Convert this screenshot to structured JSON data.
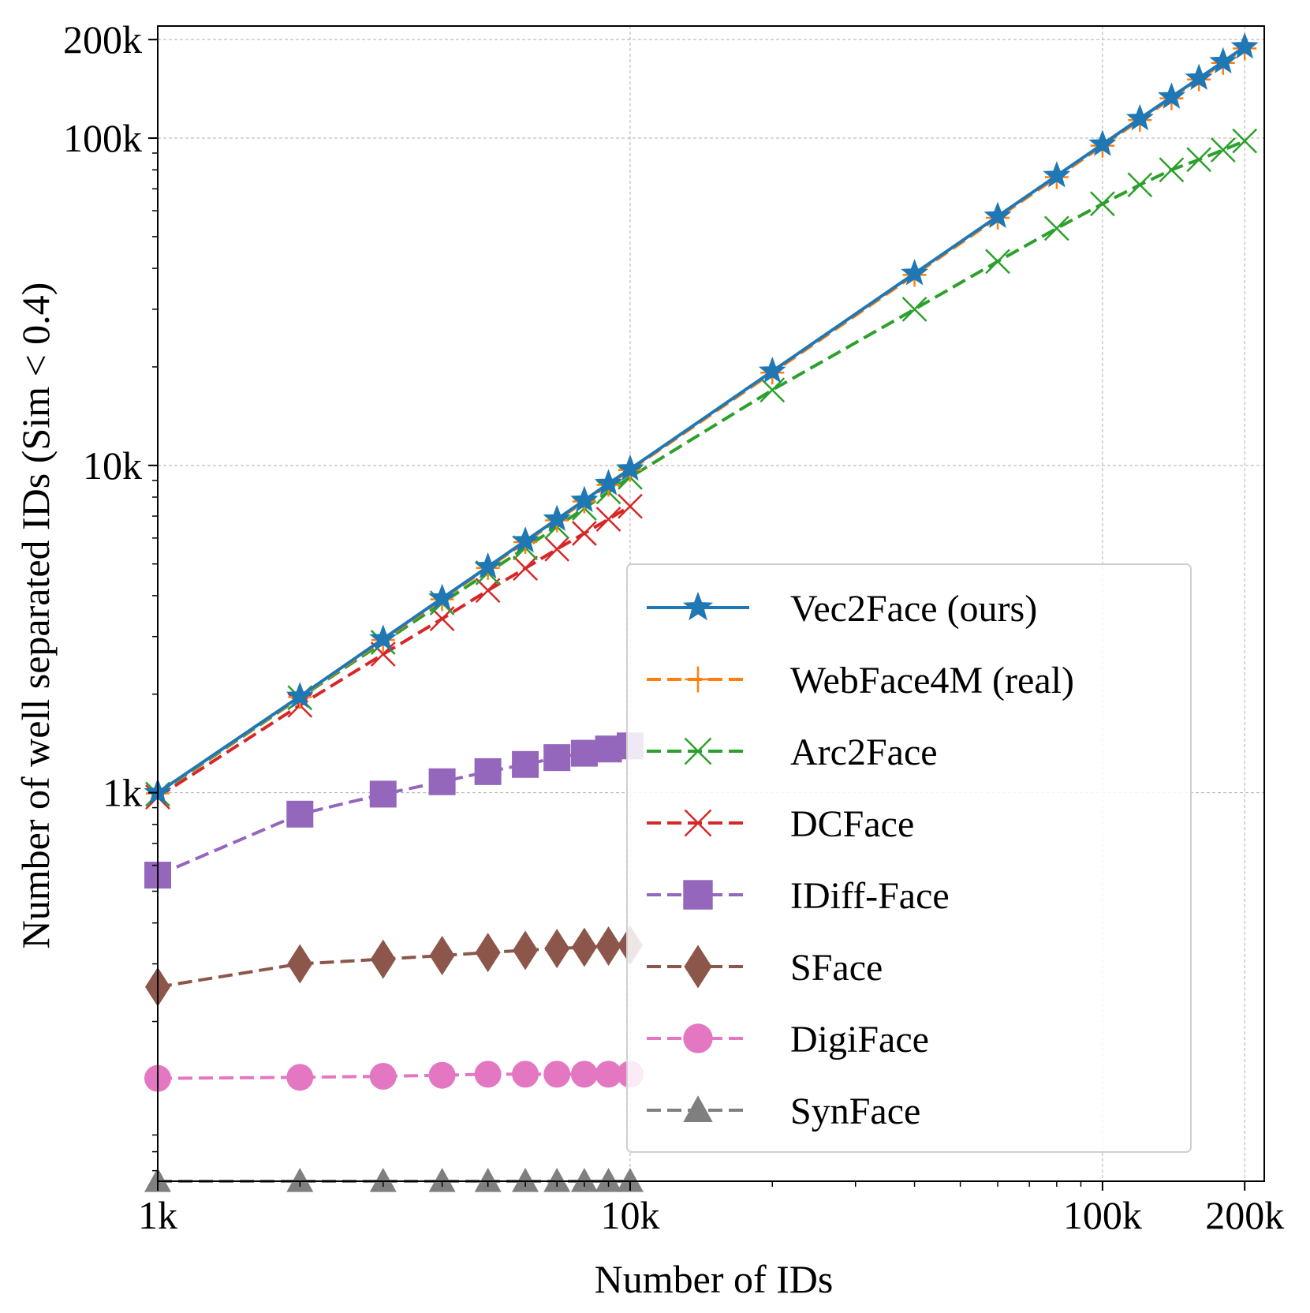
{
  "chart_data": {
    "type": "line",
    "title": "",
    "xlabel": "Number of IDs",
    "ylabel": "Number of well separated IDs (Sim < 0.4)",
    "xscale": "log",
    "yscale": "log",
    "xlim": [
      1000,
      220000
    ],
    "ylim": [
      65,
      220000
    ],
    "grid": true,
    "legend_position": "lower-right",
    "x_ticks": [
      {
        "value": 1000,
        "label": "1k"
      },
      {
        "value": 10000,
        "label": "10k"
      },
      {
        "value": 100000,
        "label": "100k"
      },
      {
        "value": 200000,
        "label": "200k"
      }
    ],
    "y_ticks": [
      {
        "value": 1000,
        "label": "1k"
      },
      {
        "value": 10000,
        "label": "10k"
      },
      {
        "value": 100000,
        "label": "100k"
      },
      {
        "value": 200000,
        "label": "200k"
      }
    ],
    "series": [
      {
        "name": "Vec2Face (ours)",
        "color": "#1f77b4",
        "marker": "star",
        "dash": "solid",
        "x": [
          1000,
          2000,
          3000,
          4000,
          5000,
          6000,
          7000,
          8000,
          9000,
          10000,
          20000,
          40000,
          60000,
          80000,
          100000,
          120000,
          140000,
          160000,
          180000,
          200000
        ],
        "y": [
          1000,
          1970,
          2950,
          3930,
          4900,
          5880,
          6850,
          7820,
          8800,
          9750,
          19400,
          38600,
          57700,
          76800,
          95800,
          114700,
          133600,
          152400,
          171200,
          190000
        ]
      },
      {
        "name": "WebFace4M (real)",
        "color": "#ff7f0e",
        "marker": "plus",
        "dash": "dashed",
        "x": [
          1000,
          2000,
          3000,
          4000,
          5000,
          6000,
          7000,
          8000,
          9000,
          10000,
          20000,
          40000,
          60000,
          80000,
          100000,
          120000,
          140000,
          160000,
          180000,
          200000
        ],
        "y": [
          995,
          1960,
          2930,
          3900,
          4860,
          5830,
          6790,
          7760,
          8720,
          9680,
          19200,
          38200,
          57100,
          76000,
          94800,
          113600,
          132300,
          151000,
          169700,
          188000
        ]
      },
      {
        "name": "Arc2Face",
        "color": "#2ca02c",
        "marker": "x",
        "dash": "dashed",
        "x": [
          1000,
          2000,
          3000,
          4000,
          5000,
          6000,
          7000,
          8000,
          9000,
          10000,
          20000,
          40000,
          60000,
          80000,
          100000,
          120000,
          140000,
          160000,
          180000,
          200000
        ],
        "y": [
          990,
          1950,
          2880,
          3800,
          4700,
          5600,
          6500,
          7400,
          8300,
          9200,
          17000,
          30000,
          42000,
          53000,
          63000,
          72000,
          80000,
          86000,
          92000,
          98000
        ]
      },
      {
        "name": "DCFace",
        "color": "#d62728",
        "marker": "x",
        "dash": "dashed",
        "x": [
          1000,
          2000,
          3000,
          4000,
          5000,
          6000,
          7000,
          8000,
          9000,
          10000
        ],
        "y": [
          970,
          1850,
          2650,
          3400,
          4150,
          4850,
          5550,
          6200,
          6850,
          7500
        ]
      },
      {
        "name": "IDiff-Face",
        "color": "#9467bd",
        "marker": "square",
        "dash": "dashed",
        "x": [
          1000,
          2000,
          3000,
          4000,
          5000,
          6000,
          7000,
          8000,
          9000,
          10000
        ],
        "y": [
          560,
          860,
          990,
          1080,
          1160,
          1220,
          1280,
          1320,
          1360,
          1390
        ]
      },
      {
        "name": "SFace",
        "color": "#8c564b",
        "marker": "diamond",
        "dash": "dashed",
        "x": [
          1000,
          2000,
          3000,
          4000,
          5000,
          6000,
          7000,
          8000,
          9000,
          10000
        ],
        "y": [
          255,
          300,
          310,
          318,
          325,
          330,
          334,
          337,
          340,
          342
        ]
      },
      {
        "name": "DigiFace",
        "color": "#e377c2",
        "marker": "circle",
        "dash": "dashed",
        "x": [
          1000,
          2000,
          3000,
          4000,
          5000,
          6000,
          7000,
          8000,
          9000,
          10000
        ],
        "y": [
          134,
          135,
          136,
          137,
          138,
          138,
          138,
          138,
          138,
          138
        ]
      },
      {
        "name": "SynFace",
        "color": "#7f7f7f",
        "marker": "triangle",
        "dash": "dashed",
        "x": [
          1000,
          2000,
          3000,
          4000,
          5000,
          6000,
          7000,
          8000,
          9000,
          10000
        ],
        "y": [
          65,
          65,
          65,
          65,
          65,
          65,
          65,
          65,
          65,
          65
        ]
      }
    ]
  }
}
